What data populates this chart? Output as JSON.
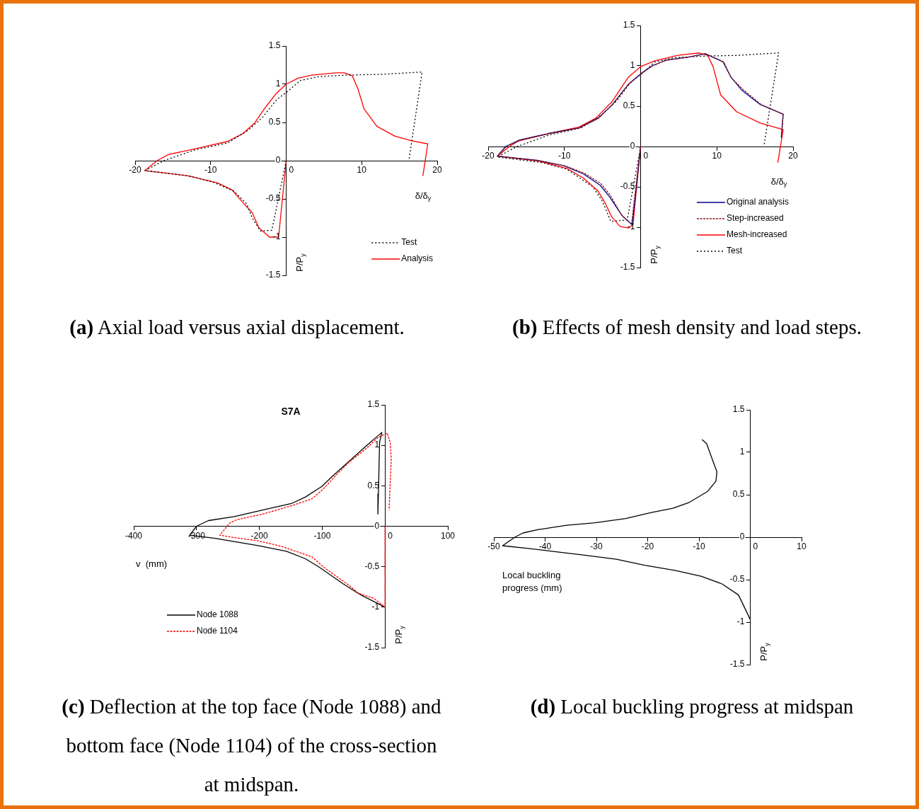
{
  "chart_data": [
    {
      "type": "line",
      "xlabel": "δ/δ$_{y}$",
      "ylabel": "P/P$_{y}$",
      "xlim": [
        -20,
        20
      ],
      "xticks": [
        -20,
        -10,
        0,
        10,
        20
      ],
      "ylim": [
        -1.5,
        1.5
      ],
      "yticks": [
        -1.5,
        -1,
        -0.5,
        0,
        0.5,
        1,
        1.5
      ],
      "legend": "bottom right",
      "annotations": [
        "(a) Axial load versus axial displacement."
      ],
      "series": [
        {
          "name": "Test",
          "color": "#000000",
          "line_style": "dotted",
          "x": [
            0,
            -1.9,
            -3.4,
            -4.5,
            -5.2,
            -6.9,
            -9.7,
            -12.9,
            -18.7,
            -16.2,
            -12.1,
            -7.8,
            -5,
            -3.1,
            -1.25,
            0,
            1.9,
            4.4,
            8.1,
            12.8,
            18,
            16.25
          ],
          "values": [
            0,
            -0.91,
            -0.92,
            -0.75,
            -0.57,
            -0.4,
            -0.28,
            -0.2,
            -0.13,
            0,
            0.14,
            0.23,
            0.4,
            0.57,
            0.8,
            0.89,
            1.05,
            1.1,
            1.12,
            1.13,
            1.16,
            0
          ]
        },
        {
          "name": "Analysis",
          "color": "#ff0000",
          "line_style": "solid",
          "x": [
            0,
            -1,
            -2.2,
            -3.6,
            -4.5,
            -5.8,
            -7.2,
            -9.1,
            -12.9,
            -16,
            -18.7,
            -17.1,
            -15.6,
            -11.8,
            -7.8,
            -5.8,
            -4.2,
            -2.8,
            -1.4,
            0,
            1.6,
            3.4,
            6.6,
            7.7,
            8.75,
            9.5,
            10.3,
            12,
            14.4,
            16.6,
            18.75,
            18.1
          ],
          "values": [
            0,
            -1,
            -1,
            -0.88,
            -0.68,
            -0.54,
            -0.38,
            -0.29,
            -0.2,
            -0.16,
            -0.13,
            0,
            0.08,
            0.16,
            0.25,
            0.35,
            0.49,
            0.69,
            0.87,
            1,
            1.08,
            1.12,
            1.15,
            1.15,
            1.11,
            0.94,
            0.68,
            0.45,
            0.32,
            0.26,
            0.22,
            -0.2
          ]
        }
      ]
    },
    {
      "type": "line",
      "xlabel": "δ/δ$_{y}$",
      "ylabel": "P/P$_{y}$",
      "xlim": [
        -20,
        20
      ],
      "xticks": [
        -20,
        -10,
        0,
        10,
        20
      ],
      "ylim": [
        -1.5,
        1.5
      ],
      "yticks": [
        -1.5,
        -1,
        -0.5,
        0,
        0.5,
        1,
        1.5
      ],
      "legend": "bottom right",
      "annotations": [
        "(b) Effects of mesh density and load steps."
      ],
      "series": [
        {
          "name": "Original analysis",
          "color": "#00008b",
          "line_style": "solid",
          "x": [
            0,
            -1.1,
            -2.4,
            -4.1,
            -5.3,
            -7.5,
            -10,
            -13.7,
            -18.8,
            -17.7,
            -15.9,
            -12.1,
            -8.1,
            -5.6,
            -3.8,
            -1.6,
            0,
            1.5,
            3.3,
            6.4,
            8.45,
            10.8,
            11.85,
            13.25,
            15.7,
            18.7,
            18.45
          ],
          "values": [
            0,
            -0.97,
            -0.86,
            -0.62,
            -0.48,
            -0.34,
            -0.24,
            -0.17,
            -0.12,
            0,
            0.08,
            0.16,
            0.23,
            0.35,
            0.51,
            0.77,
            0.9,
            1,
            1.07,
            1.11,
            1.15,
            1.05,
            0.86,
            0.7,
            0.52,
            0.4,
            0.11
          ]
        },
        {
          "name": "Step-increased",
          "color": "#8b1a1a",
          "line_style": "dashed",
          "x": [
            0,
            -1.2,
            -2.5,
            -4,
            -5.2,
            -7.4,
            -9.9,
            -13.6,
            -18.8,
            -17.6,
            -15.8,
            -12,
            -8,
            -5.5,
            -3.7,
            -1.5,
            0,
            1.6,
            3.4,
            6.5,
            8.5,
            10.9,
            11.9,
            13.4,
            15.8,
            18.7,
            18.5
          ],
          "values": [
            0,
            -0.96,
            -0.85,
            -0.6,
            -0.46,
            -0.33,
            -0.24,
            -0.17,
            -0.12,
            0,
            0.08,
            0.16,
            0.23,
            0.35,
            0.52,
            0.78,
            0.9,
            1,
            1.07,
            1.11,
            1.15,
            1.05,
            0.85,
            0.71,
            0.52,
            0.4,
            0.13
          ]
        },
        {
          "name": "Mesh-increased",
          "color": "#ff0000",
          "line_style": "solid",
          "x": [
            0,
            -1,
            -1.6,
            -2.7,
            -3.8,
            -4.6,
            -5.6,
            -7.5,
            -9.7,
            -13.4,
            -18.8,
            -17.2,
            -16,
            -12.1,
            -8.1,
            -5.9,
            -3.8,
            -1.6,
            0,
            1.8,
            4.9,
            7.7,
            8.8,
            9.5,
            10.5,
            12.6,
            15.7,
            18.7,
            18
          ],
          "values": [
            0,
            -0.97,
            -1.01,
            -0.99,
            -0.87,
            -0.71,
            -0.55,
            -0.39,
            -0.27,
            -0.18,
            -0.12,
            0,
            0.07,
            0.16,
            0.24,
            0.35,
            0.55,
            0.86,
            0.99,
            1.06,
            1.13,
            1.16,
            1.13,
            0.99,
            0.64,
            0.43,
            0.29,
            0.21,
            -0.2
          ]
        },
        {
          "name": "Test",
          "color": "#000000",
          "line_style": "dotted",
          "x": [
            0,
            -1.75,
            -3.9,
            -5,
            -6.25,
            -9.7,
            -12.9,
            -18.8,
            -16.2,
            -12.1,
            -7.8,
            -5,
            -3.1,
            -1.25,
            0,
            1.9,
            4.4,
            8.1,
            12.8,
            18.1,
            16.2
          ],
          "values": [
            0,
            -0.91,
            -0.93,
            -0.68,
            -0.5,
            -0.28,
            -0.2,
            -0.13,
            0,
            0.14,
            0.23,
            0.4,
            0.57,
            0.8,
            0.89,
            1.05,
            1.1,
            1.12,
            1.13,
            1.16,
            0.02
          ]
        }
      ]
    },
    {
      "type": "line",
      "title": "S7A",
      "xlabel": "v  (mm)",
      "ylabel": "P/P$_{y}$",
      "xlim": [
        -400,
        100
      ],
      "xticks": [
        -400,
        -300,
        -200,
        -100,
        0,
        100
      ],
      "ylim": [
        -1.5,
        1.5
      ],
      "yticks": [
        -1.5,
        -1,
        -0.5,
        0,
        0.5,
        1,
        1.5
      ],
      "legend": "bottom left",
      "annotations": [
        "(c) Deflection at the top face (Node 1088) and bottom face (Node 1104) of the cross-section at midspan."
      ],
      "series": [
        {
          "name": "Node 1088",
          "color": "#000000",
          "line_style": "solid",
          "x": [
            0,
            -40.6,
            -66.8,
            -104,
            -127,
            -157,
            -202,
            -270,
            -311,
            -300,
            -281,
            -240,
            -195,
            -149,
            -127,
            -101,
            -82,
            -59,
            -29,
            -4.9,
            -8.6,
            -10.5,
            -11.3
          ],
          "values": [
            -1,
            -0.84,
            -0.71,
            -0.51,
            -0.4,
            -0.31,
            -0.24,
            -0.15,
            -0.11,
            0,
            0.07,
            0.12,
            0.2,
            0.28,
            0.36,
            0.49,
            0.63,
            0.79,
            1,
            1.16,
            1.04,
            0.4,
            0.15
          ]
        },
        {
          "name": "Node 1104",
          "color": "#ff0000",
          "line_style": "dashed",
          "x": [
            0,
            0,
            -18,
            -42,
            -59,
            -97,
            -116,
            -164,
            -202,
            -240,
            -263,
            -247,
            -236,
            -195,
            -146,
            -116,
            -97,
            -78,
            -59,
            -33,
            -10.5,
            3.8,
            8.3,
            10,
            6.4
          ],
          "values": [
            0,
            -1,
            -0.89,
            -0.83,
            -0.72,
            -0.51,
            -0.38,
            -0.25,
            -0.18,
            -0.14,
            -0.11,
            0.04,
            0.08,
            0.15,
            0.26,
            0.34,
            0.47,
            0.63,
            0.78,
            0.94,
            1.1,
            1.15,
            1.03,
            0.83,
            0.2
          ]
        }
      ]
    },
    {
      "type": "line",
      "xlabel": "Local buckling progress (mm)",
      "ylabel": "P/P$_{y}$",
      "xlim": [
        -50,
        10
      ],
      "xticks": [
        -50,
        -40,
        -30,
        -20,
        -10,
        0,
        10
      ],
      "ylim": [
        -1.5,
        1.5
      ],
      "yticks": [
        -1.5,
        -1,
        -0.5,
        0,
        0.5,
        1,
        1.5
      ],
      "annotations": [
        "(d) Local buckling progress at midspan"
      ],
      "series": [
        {
          "color": "#000000",
          "line_style": "solid",
          "x": [
            0,
            -1.1,
            -2.3,
            -5.5,
            -9.6,
            -14.7,
            -20.6,
            -26.1,
            -32.6,
            -38.1,
            -43.6,
            -48.3,
            -45.9,
            -44.3,
            -41.3,
            -35.8,
            -30.3,
            -24.3,
            -19.3,
            -15.1,
            -11.9,
            -8.3,
            -6.7,
            -6.5,
            -7.3,
            -8.5,
            -9.4
          ],
          "values": [
            -0.97,
            -0.83,
            -0.68,
            -0.55,
            -0.46,
            -0.39,
            -0.33,
            -0.26,
            -0.21,
            -0.17,
            -0.13,
            -0.1,
            0,
            0.05,
            0.09,
            0.14,
            0.17,
            0.22,
            0.29,
            0.34,
            0.41,
            0.54,
            0.66,
            0.77,
            0.9,
            1.1,
            1.15
          ]
        }
      ]
    }
  ]
}
